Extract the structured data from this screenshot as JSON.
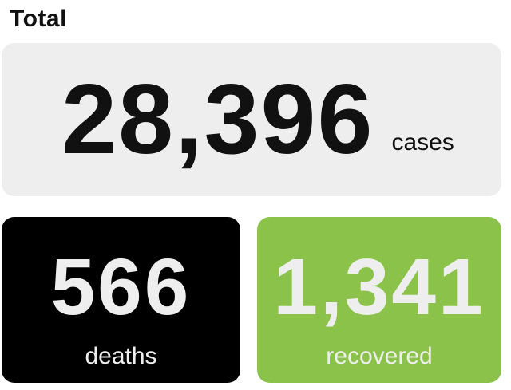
{
  "title": "Total",
  "total": {
    "value": "28,396",
    "unit": "cases"
  },
  "deaths": {
    "value": "566",
    "label": "deaths"
  },
  "recovered": {
    "value": "1,341",
    "label": "recovered",
    "color": "#8bc34a"
  },
  "colors": {
    "total_card_bg": "#eeeeee",
    "deaths_card_bg": "#000000"
  }
}
